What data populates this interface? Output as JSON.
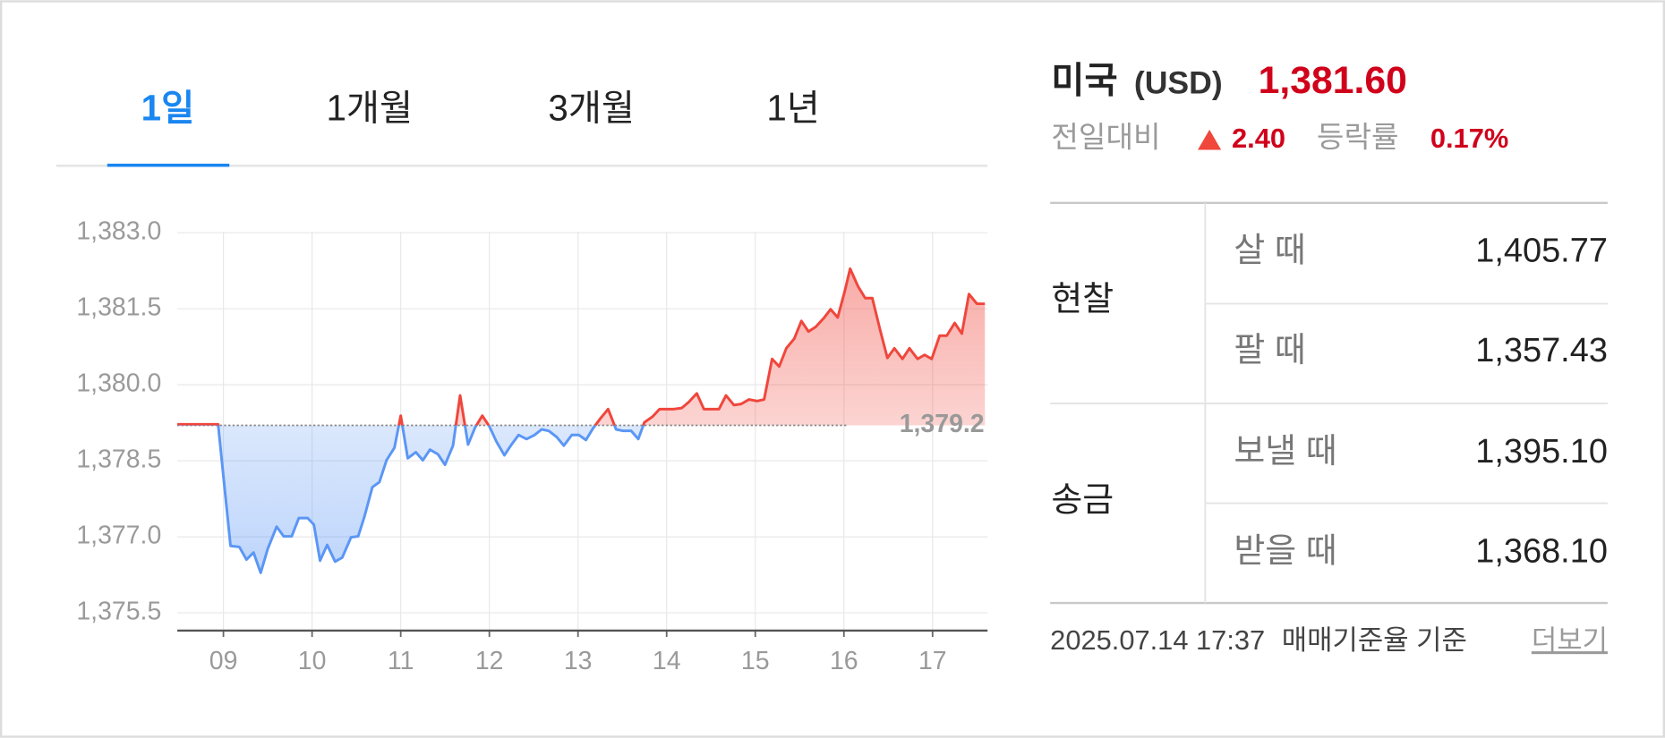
{
  "tabs": {
    "items": [
      "1일",
      "1개월",
      "3개월",
      "1년"
    ],
    "active": 0
  },
  "chart_data": {
    "type": "line",
    "x": [
      8.48,
      8.94,
      9.08,
      9.18,
      9.26,
      9.34,
      9.42,
      9.5,
      9.6,
      9.68,
      9.77,
      9.85,
      9.95,
      10.02,
      10.09,
      10.17,
      10.26,
      10.34,
      10.44,
      10.52,
      10.59,
      10.68,
      10.76,
      10.84,
      10.93,
      11.0,
      11.08,
      11.17,
      11.25,
      11.33,
      11.42,
      11.5,
      11.59,
      11.67,
      11.76,
      11.84,
      11.92,
      12.0,
      12.08,
      12.17,
      12.25,
      12.33,
      12.42,
      12.51,
      12.59,
      12.67,
      12.76,
      12.84,
      12.93,
      13.01,
      13.09,
      13.17,
      13.26,
      13.34,
      13.43,
      13.51,
      13.6,
      13.68,
      13.75,
      13.84,
      13.92,
      14.0,
      14.08,
      14.17,
      14.25,
      14.34,
      14.42,
      14.5,
      14.59,
      14.67,
      14.76,
      14.84,
      14.93,
      15.02,
      15.1,
      15.19,
      15.27,
      15.35,
      15.44,
      15.52,
      15.6,
      15.68,
      15.77,
      15.85,
      15.93,
      16.01,
      16.07,
      16.16,
      16.24,
      16.32,
      16.41,
      16.49,
      16.57,
      16.66,
      16.74,
      16.83,
      16.91,
      16.99,
      17.08,
      17.16,
      17.25,
      17.33,
      17.41,
      17.5,
      17.59
    ],
    "values": [
      1379.22,
      1379.22,
      1376.82,
      1376.8,
      1376.55,
      1376.69,
      1376.29,
      1376.76,
      1377.2,
      1377.01,
      1377.01,
      1377.37,
      1377.37,
      1377.24,
      1376.53,
      1376.84,
      1376.51,
      1376.59,
      1376.99,
      1377.01,
      1377.39,
      1377.98,
      1378.08,
      1378.51,
      1378.76,
      1379.39,
      1378.55,
      1378.67,
      1378.51,
      1378.72,
      1378.63,
      1378.42,
      1378.8,
      1379.79,
      1378.82,
      1379.16,
      1379.39,
      1379.18,
      1378.88,
      1378.61,
      1378.82,
      1379.01,
      1378.93,
      1379.01,
      1379.12,
      1379.09,
      1378.97,
      1378.8,
      1379.01,
      1379.01,
      1378.91,
      1379.14,
      1379.35,
      1379.52,
      1379.12,
      1379.09,
      1379.09,
      1378.93,
      1379.26,
      1379.37,
      1379.52,
      1379.52,
      1379.52,
      1379.54,
      1379.66,
      1379.83,
      1379.52,
      1379.52,
      1379.52,
      1379.79,
      1379.6,
      1379.62,
      1379.71,
      1379.68,
      1379.71,
      1380.51,
      1380.36,
      1380.72,
      1380.91,
      1381.26,
      1381.05,
      1381.14,
      1381.31,
      1381.49,
      1381.33,
      1381.85,
      1382.29,
      1381.94,
      1381.71,
      1381.71,
      1381.07,
      1380.53,
      1380.72,
      1380.51,
      1380.72,
      1380.51,
      1380.59,
      1380.51,
      1380.97,
      1380.97,
      1381.22,
      1381.01,
      1381.79,
      1381.6,
      1381.6
    ],
    "baseline": {
      "value": 1379.2,
      "label": "1,379.2"
    },
    "up_color": "#f0463c",
    "down_color": "#5b96f5",
    "xlim": [
      8.48,
      17.62
    ],
    "ylim": [
      1375.15,
      1383.4
    ],
    "xticks": [
      {
        "value": 9,
        "label": "09"
      },
      {
        "value": 10,
        "label": "10"
      },
      {
        "value": 11,
        "label": "11"
      },
      {
        "value": 12,
        "label": "12"
      },
      {
        "value": 13,
        "label": "13"
      },
      {
        "value": 14,
        "label": "14"
      },
      {
        "value": 15,
        "label": "15"
      },
      {
        "value": 16,
        "label": "16"
      },
      {
        "value": 17,
        "label": "17"
      }
    ],
    "yticks": [
      {
        "value": 1375.5,
        "label": "1,375.5"
      },
      {
        "value": 1377.0,
        "label": "1,377.0"
      },
      {
        "value": 1378.5,
        "label": "1,378.5"
      },
      {
        "value": 1380.0,
        "label": "1,380.0"
      },
      {
        "value": 1381.5,
        "label": "1,381.5"
      },
      {
        "value": 1383.0,
        "label": "1,383.0"
      }
    ],
    "grid": true
  },
  "header": {
    "country": "미국",
    "currency": "(USD)",
    "price": "1,381.60",
    "change_label": "전일대비",
    "change": "2.40",
    "rate_label": "등락률",
    "rate": "0.17%"
  },
  "table": {
    "groups": [
      {
        "name": "현찰",
        "rows": [
          [
            "살 때",
            "1,405.77"
          ],
          [
            "팔 때",
            "1,357.43"
          ]
        ]
      },
      {
        "name": "송금",
        "rows": [
          [
            "보낼 때",
            "1,395.10"
          ],
          [
            "받을 때",
            "1,368.10"
          ]
        ]
      }
    ]
  },
  "footer": {
    "date": "2025.07.14 17:37",
    "basis": "매매기준율 기준",
    "more": "더보기"
  }
}
